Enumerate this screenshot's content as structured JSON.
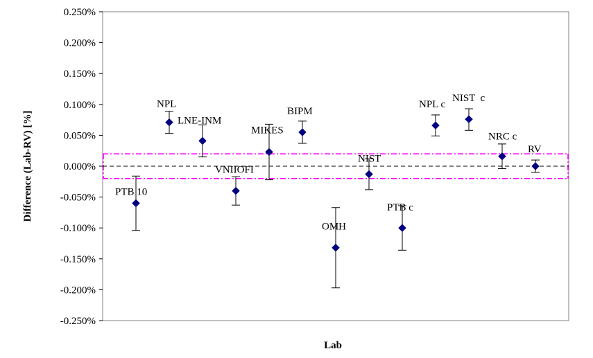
{
  "chart_data": {
    "type": "scatter",
    "xlabel": "Lab",
    "ylabel": "Difference (Lab-RV) [%]",
    "ylim": [
      -0.25,
      0.25
    ],
    "y_ticks": [
      "0.250%",
      "0.200%",
      "0.150%",
      "0.100%",
      "0.050%",
      "0.000%",
      "-0.050%",
      "-0.100%",
      "-0.150%",
      "-0.200%",
      "-0.250%"
    ],
    "grid": false,
    "legend": "none",
    "reference_line": {
      "y": 0.0,
      "style": "dashed"
    },
    "tolerance_band": {
      "lower": -0.02,
      "upper": 0.02,
      "style": "dash-dot"
    },
    "points": [
      {
        "label": "PTB 10",
        "index": 1,
        "value": -0.06,
        "error_low": -0.104,
        "error_high": -0.016
      },
      {
        "label": "NPL",
        "index": 2,
        "value": 0.071,
        "error_low": 0.053,
        "error_high": 0.089
      },
      {
        "label": "LNE-INM",
        "index": 3,
        "value": 0.041,
        "error_low": 0.015,
        "error_high": 0.067
      },
      {
        "label": "VNIIOFI",
        "index": 4,
        "value": -0.04,
        "error_low": -0.063,
        "error_high": -0.017
      },
      {
        "label": "MIKES",
        "index": 5,
        "value": 0.023,
        "error_low": -0.022,
        "error_high": 0.068
      },
      {
        "label": "BIPM",
        "index": 6,
        "value": 0.055,
        "error_low": 0.037,
        "error_high": 0.073
      },
      {
        "label": "OMH",
        "index": 7,
        "value": -0.132,
        "error_low": -0.197,
        "error_high": -0.067
      },
      {
        "label": "NIST",
        "index": 8,
        "value": -0.013,
        "error_low": -0.038,
        "error_high": 0.012
      },
      {
        "label": "PTB c",
        "index": 9,
        "value": -0.1,
        "error_low": -0.136,
        "error_high": -0.064
      },
      {
        "label": "NPL c",
        "index": 10,
        "value": 0.066,
        "error_low": 0.049,
        "error_high": 0.083
      },
      {
        "label": "NIST  c",
        "index": 11,
        "value": 0.076,
        "error_low": 0.058,
        "error_high": 0.093
      },
      {
        "label": "NRC c",
        "index": 12,
        "value": 0.016,
        "error_low": -0.004,
        "error_high": 0.036
      },
      {
        "label": "RV",
        "index": 13,
        "value": 0.0,
        "error_low": -0.01,
        "error_high": 0.01
      }
    ],
    "colors": {
      "marker": "#000080",
      "error_bar": "#000000",
      "tolerance": "#ff00ff",
      "reference": "#000000",
      "axis": "#808080"
    }
  }
}
